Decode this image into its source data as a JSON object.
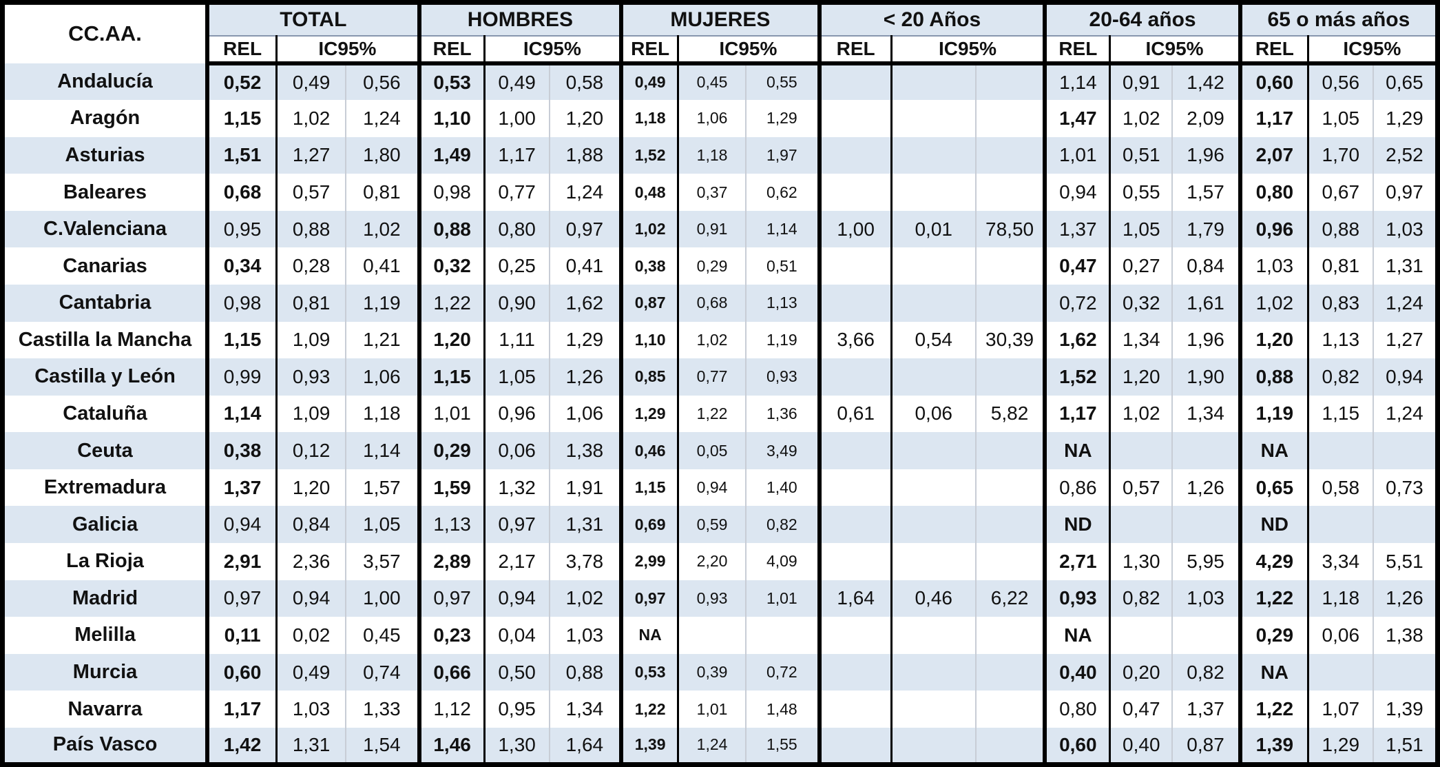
{
  "table": {
    "corner_label": "CC.AA.",
    "subheaders": {
      "rel": "REL",
      "ic": "IC95%"
    },
    "groups": [
      {
        "label": "TOTAL"
      },
      {
        "label": "HOMBRES"
      },
      {
        "label": "MUJERES"
      },
      {
        "label": "< 20 Años"
      },
      {
        "label": "20-64 años"
      },
      {
        "label": "65 o más años"
      }
    ],
    "colors": {
      "zebra_blue": "#dce6f1",
      "zebra_white": "#ffffff",
      "border": "#000000"
    },
    "rows": [
      {
        "region": "Andalucía",
        "cells": [
          {
            "rel": "0,52",
            "b": 1,
            "lo": "0,49",
            "hi": "0,56"
          },
          {
            "rel": "0,53",
            "b": 1,
            "lo": "0,49",
            "hi": "0,58"
          },
          {
            "rel": "0,49",
            "b": 1,
            "lo": "0,45",
            "hi": "0,55"
          },
          {
            "rel": "",
            "b": 0,
            "lo": "",
            "hi": ""
          },
          {
            "rel": "1,14",
            "b": 0,
            "lo": "0,91",
            "hi": "1,42"
          },
          {
            "rel": "0,60",
            "b": 1,
            "lo": "0,56",
            "hi": "0,65"
          }
        ]
      },
      {
        "region": "Aragón",
        "cells": [
          {
            "rel": "1,15",
            "b": 1,
            "lo": "1,02",
            "hi": "1,24"
          },
          {
            "rel": "1,10",
            "b": 1,
            "lo": "1,00",
            "hi": "1,20"
          },
          {
            "rel": "1,18",
            "b": 1,
            "lo": "1,06",
            "hi": "1,29"
          },
          {
            "rel": "",
            "b": 0,
            "lo": "",
            "hi": ""
          },
          {
            "rel": "1,47",
            "b": 1,
            "lo": "1,02",
            "hi": "2,09"
          },
          {
            "rel": "1,17",
            "b": 1,
            "lo": "1,05",
            "hi": "1,29"
          }
        ]
      },
      {
        "region": "Asturias",
        "cells": [
          {
            "rel": "1,51",
            "b": 1,
            "lo": "1,27",
            "hi": "1,80"
          },
          {
            "rel": "1,49",
            "b": 1,
            "lo": "1,17",
            "hi": "1,88"
          },
          {
            "rel": "1,52",
            "b": 1,
            "lo": "1,18",
            "hi": "1,97"
          },
          {
            "rel": "",
            "b": 0,
            "lo": "",
            "hi": ""
          },
          {
            "rel": "1,01",
            "b": 0,
            "lo": "0,51",
            "hi": "1,96"
          },
          {
            "rel": "2,07",
            "b": 1,
            "lo": "1,70",
            "hi": "2,52"
          }
        ]
      },
      {
        "region": "Baleares",
        "cells": [
          {
            "rel": "0,68",
            "b": 1,
            "lo": "0,57",
            "hi": "0,81"
          },
          {
            "rel": "0,98",
            "b": 0,
            "lo": "0,77",
            "hi": "1,24"
          },
          {
            "rel": "0,48",
            "b": 1,
            "lo": "0,37",
            "hi": "0,62"
          },
          {
            "rel": "",
            "b": 0,
            "lo": "",
            "hi": ""
          },
          {
            "rel": "0,94",
            "b": 0,
            "lo": "0,55",
            "hi": "1,57"
          },
          {
            "rel": "0,80",
            "b": 1,
            "lo": "0,67",
            "hi": "0,97"
          }
        ]
      },
      {
        "region": "C.Valenciana",
        "cells": [
          {
            "rel": "0,95",
            "b": 0,
            "lo": "0,88",
            "hi": "1,02"
          },
          {
            "rel": "0,88",
            "b": 1,
            "lo": "0,80",
            "hi": "0,97"
          },
          {
            "rel": "1,02",
            "b": 1,
            "lo": "0,91",
            "hi": "1,14"
          },
          {
            "rel": "1,00",
            "b": 0,
            "lo": "0,01",
            "hi": "78,50"
          },
          {
            "rel": "1,37",
            "b": 0,
            "lo": "1,05",
            "hi": "1,79"
          },
          {
            "rel": "0,96",
            "b": 1,
            "lo": "0,88",
            "hi": "1,03"
          }
        ]
      },
      {
        "region": "Canarias",
        "cells": [
          {
            "rel": "0,34",
            "b": 1,
            "lo": "0,28",
            "hi": "0,41"
          },
          {
            "rel": "0,32",
            "b": 1,
            "lo": "0,25",
            "hi": "0,41"
          },
          {
            "rel": "0,38",
            "b": 1,
            "lo": "0,29",
            "hi": "0,51"
          },
          {
            "rel": "",
            "b": 0,
            "lo": "",
            "hi": ""
          },
          {
            "rel": "0,47",
            "b": 1,
            "lo": "0,27",
            "hi": "0,84"
          },
          {
            "rel": "1,03",
            "b": 0,
            "lo": "0,81",
            "hi": "1,31"
          }
        ]
      },
      {
        "region": "Cantabria",
        "cells": [
          {
            "rel": "0,98",
            "b": 0,
            "lo": "0,81",
            "hi": "1,19"
          },
          {
            "rel": "1,22",
            "b": 0,
            "lo": "0,90",
            "hi": "1,62"
          },
          {
            "rel": "0,87",
            "b": 1,
            "lo": "0,68",
            "hi": "1,13"
          },
          {
            "rel": "",
            "b": 0,
            "lo": "",
            "hi": ""
          },
          {
            "rel": "0,72",
            "b": 0,
            "lo": "0,32",
            "hi": "1,61"
          },
          {
            "rel": "1,02",
            "b": 0,
            "lo": "0,83",
            "hi": "1,24"
          }
        ]
      },
      {
        "region": "Castilla la Mancha",
        "cells": [
          {
            "rel": "1,15",
            "b": 1,
            "lo": "1,09",
            "hi": "1,21"
          },
          {
            "rel": "1,20",
            "b": 1,
            "lo": "1,11",
            "hi": "1,29"
          },
          {
            "rel": "1,10",
            "b": 1,
            "lo": "1,02",
            "hi": "1,19"
          },
          {
            "rel": "3,66",
            "b": 0,
            "lo": "0,54",
            "hi": "30,39"
          },
          {
            "rel": "1,62",
            "b": 1,
            "lo": "1,34",
            "hi": "1,96"
          },
          {
            "rel": "1,20",
            "b": 1,
            "lo": "1,13",
            "hi": "1,27"
          }
        ]
      },
      {
        "region": "Castilla y León",
        "cells": [
          {
            "rel": "0,99",
            "b": 0,
            "lo": "0,93",
            "hi": "1,06"
          },
          {
            "rel": "1,15",
            "b": 1,
            "lo": "1,05",
            "hi": "1,26"
          },
          {
            "rel": "0,85",
            "b": 1,
            "lo": "0,77",
            "hi": "0,93"
          },
          {
            "rel": "",
            "b": 0,
            "lo": "",
            "hi": ""
          },
          {
            "rel": "1,52",
            "b": 1,
            "lo": "1,20",
            "hi": "1,90"
          },
          {
            "rel": "0,88",
            "b": 1,
            "lo": "0,82",
            "hi": "0,94"
          }
        ]
      },
      {
        "region": "Cataluña",
        "cells": [
          {
            "rel": "1,14",
            "b": 1,
            "lo": "1,09",
            "hi": "1,18"
          },
          {
            "rel": "1,01",
            "b": 0,
            "lo": "0,96",
            "hi": "1,06"
          },
          {
            "rel": "1,29",
            "b": 1,
            "lo": "1,22",
            "hi": "1,36"
          },
          {
            "rel": "0,61",
            "b": 0,
            "lo": "0,06",
            "hi": "5,82"
          },
          {
            "rel": "1,17",
            "b": 1,
            "lo": "1,02",
            "hi": "1,34"
          },
          {
            "rel": "1,19",
            "b": 1,
            "lo": "1,15",
            "hi": "1,24"
          }
        ]
      },
      {
        "region": "Ceuta",
        "cells": [
          {
            "rel": "0,38",
            "b": 1,
            "lo": "0,12",
            "hi": "1,14"
          },
          {
            "rel": "0,29",
            "b": 1,
            "lo": "0,06",
            "hi": "1,38"
          },
          {
            "rel": "0,46",
            "b": 1,
            "lo": "0,05",
            "hi": "3,49"
          },
          {
            "rel": "",
            "b": 0,
            "lo": "",
            "hi": ""
          },
          {
            "rel": "NA",
            "b": 1,
            "lo": "",
            "hi": ""
          },
          {
            "rel": "NA",
            "b": 1,
            "lo": "",
            "hi": ""
          }
        ]
      },
      {
        "region": "Extremadura",
        "cells": [
          {
            "rel": "1,37",
            "b": 1,
            "lo": "1,20",
            "hi": "1,57"
          },
          {
            "rel": "1,59",
            "b": 1,
            "lo": "1,32",
            "hi": "1,91"
          },
          {
            "rel": "1,15",
            "b": 1,
            "lo": "0,94",
            "hi": "1,40"
          },
          {
            "rel": "",
            "b": 0,
            "lo": "",
            "hi": ""
          },
          {
            "rel": "0,86",
            "b": 0,
            "lo": "0,57",
            "hi": "1,26"
          },
          {
            "rel": "0,65",
            "b": 1,
            "lo": "0,58",
            "hi": "0,73"
          }
        ]
      },
      {
        "region": "Galicia",
        "cells": [
          {
            "rel": "0,94",
            "b": 0,
            "lo": "0,84",
            "hi": "1,05"
          },
          {
            "rel": "1,13",
            "b": 0,
            "lo": "0,97",
            "hi": "1,31"
          },
          {
            "rel": "0,69",
            "b": 1,
            "lo": "0,59",
            "hi": "0,82"
          },
          {
            "rel": "",
            "b": 0,
            "lo": "",
            "hi": ""
          },
          {
            "rel": "ND",
            "b": 1,
            "lo": "",
            "hi": ""
          },
          {
            "rel": "ND",
            "b": 1,
            "lo": "",
            "hi": ""
          }
        ]
      },
      {
        "region": "La Rioja",
        "cells": [
          {
            "rel": "2,91",
            "b": 1,
            "lo": "2,36",
            "hi": "3,57"
          },
          {
            "rel": "2,89",
            "b": 1,
            "lo": "2,17",
            "hi": "3,78"
          },
          {
            "rel": "2,99",
            "b": 1,
            "lo": "2,20",
            "hi": "4,09"
          },
          {
            "rel": "",
            "b": 0,
            "lo": "",
            "hi": ""
          },
          {
            "rel": "2,71",
            "b": 1,
            "lo": "1,30",
            "hi": "5,95"
          },
          {
            "rel": "4,29",
            "b": 1,
            "lo": "3,34",
            "hi": "5,51"
          }
        ]
      },
      {
        "region": "Madrid",
        "cells": [
          {
            "rel": "0,97",
            "b": 0,
            "lo": "0,94",
            "hi": "1,00"
          },
          {
            "rel": "0,97",
            "b": 0,
            "lo": "0,94",
            "hi": "1,02"
          },
          {
            "rel": "0,97",
            "b": 1,
            "lo": "0,93",
            "hi": "1,01"
          },
          {
            "rel": "1,64",
            "b": 0,
            "lo": "0,46",
            "hi": "6,22"
          },
          {
            "rel": "0,93",
            "b": 1,
            "lo": "0,82",
            "hi": "1,03"
          },
          {
            "rel": "1,22",
            "b": 1,
            "lo": "1,18",
            "hi": "1,26"
          }
        ]
      },
      {
        "region": "Melilla",
        "cells": [
          {
            "rel": "0,11",
            "b": 1,
            "lo": "0,02",
            "hi": "0,45"
          },
          {
            "rel": "0,23",
            "b": 1,
            "lo": "0,04",
            "hi": "1,03"
          },
          {
            "rel": "NA",
            "b": 1,
            "lo": "",
            "hi": ""
          },
          {
            "rel": "",
            "b": 0,
            "lo": "",
            "hi": ""
          },
          {
            "rel": "NA",
            "b": 1,
            "lo": "",
            "hi": ""
          },
          {
            "rel": "0,29",
            "b": 1,
            "lo": "0,06",
            "hi": "1,38"
          }
        ]
      },
      {
        "region": "Murcia",
        "cells": [
          {
            "rel": "0,60",
            "b": 1,
            "lo": "0,49",
            "hi": "0,74"
          },
          {
            "rel": "0,66",
            "b": 1,
            "lo": "0,50",
            "hi": "0,88"
          },
          {
            "rel": "0,53",
            "b": 1,
            "lo": "0,39",
            "hi": "0,72"
          },
          {
            "rel": "",
            "b": 0,
            "lo": "",
            "hi": ""
          },
          {
            "rel": "0,40",
            "b": 1,
            "lo": "0,20",
            "hi": "0,82"
          },
          {
            "rel": "NA",
            "b": 1,
            "lo": "",
            "hi": ""
          }
        ]
      },
      {
        "region": "Navarra",
        "cells": [
          {
            "rel": "1,17",
            "b": 1,
            "lo": "1,03",
            "hi": "1,33"
          },
          {
            "rel": "1,12",
            "b": 0,
            "lo": "0,95",
            "hi": "1,34"
          },
          {
            "rel": "1,22",
            "b": 1,
            "lo": "1,01",
            "hi": "1,48"
          },
          {
            "rel": "",
            "b": 0,
            "lo": "",
            "hi": ""
          },
          {
            "rel": "0,80",
            "b": 0,
            "lo": "0,47",
            "hi": "1,37"
          },
          {
            "rel": "1,22",
            "b": 1,
            "lo": "1,07",
            "hi": "1,39"
          }
        ]
      },
      {
        "region": "País Vasco",
        "cells": [
          {
            "rel": "1,42",
            "b": 1,
            "lo": "1,31",
            "hi": "1,54"
          },
          {
            "rel": "1,46",
            "b": 1,
            "lo": "1,30",
            "hi": "1,64"
          },
          {
            "rel": "1,39",
            "b": 1,
            "lo": "1,24",
            "hi": "1,55"
          },
          {
            "rel": "",
            "b": 0,
            "lo": "",
            "hi": ""
          },
          {
            "rel": "0,60",
            "b": 1,
            "lo": "0,40",
            "hi": "0,87"
          },
          {
            "rel": "1,39",
            "b": 1,
            "lo": "1,29",
            "hi": "1,51"
          }
        ]
      }
    ]
  }
}
